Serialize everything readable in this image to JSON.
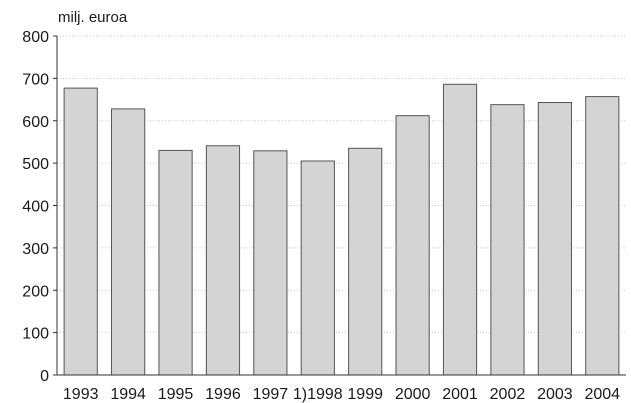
{
  "chart_data": {
    "type": "bar",
    "unit_label": "milj. euroa",
    "categories": [
      "1993",
      "1994",
      "1995",
      "1996",
      "1997",
      "1998",
      "1999",
      "2000",
      "2001",
      "2002",
      "2003",
      "2004"
    ],
    "x_tick_labels": [
      "1993",
      "1994",
      "1995",
      "1996",
      "1997",
      "1)1998",
      "1999",
      "2000",
      "2001",
      "2002",
      "2003",
      "2004"
    ],
    "values": [
      677,
      628,
      530,
      541,
      529,
      505,
      535,
      612,
      686,
      638,
      643,
      657
    ],
    "ylim": [
      0,
      800
    ],
    "yticks": [
      0,
      100,
      200,
      300,
      400,
      500,
      600,
      700,
      800
    ],
    "grid": true,
    "bar_color": "#d4d4d4",
    "bar_edge_color": "#555555"
  }
}
